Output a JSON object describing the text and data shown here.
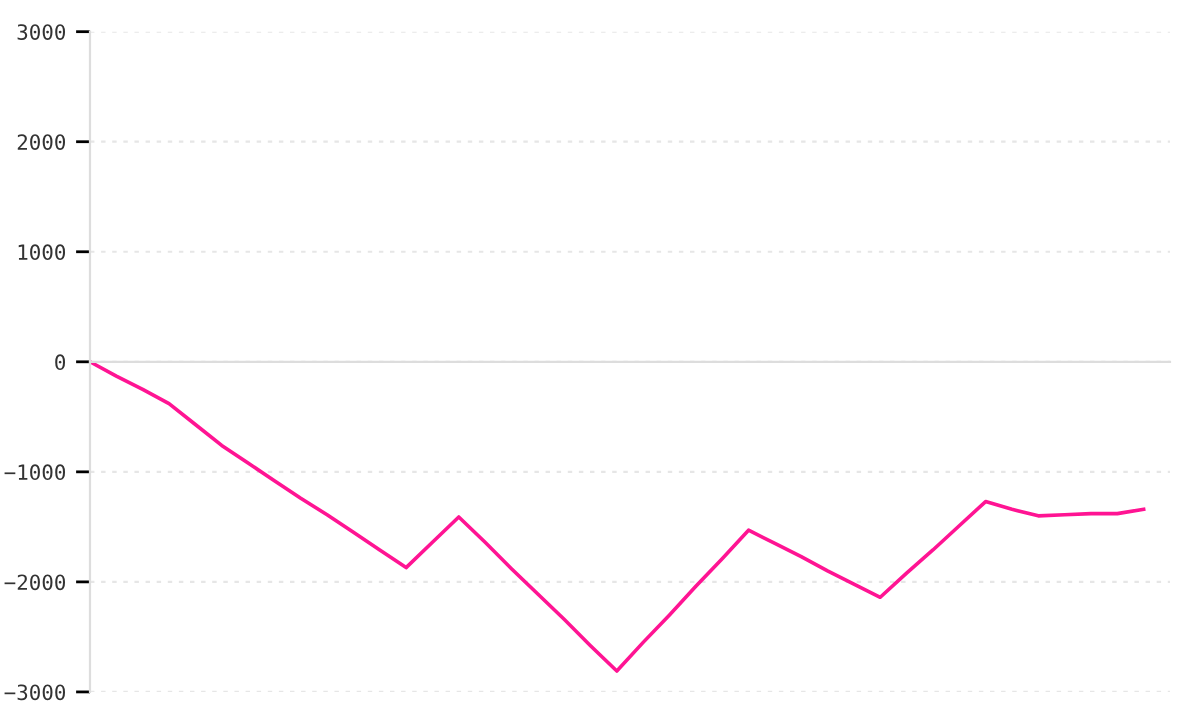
{
  "chart_data": {
    "type": "line",
    "categories": [
      null,
      null,
      null,
      null,
      null,
      null,
      null,
      null,
      null,
      null,
      null,
      null,
      null,
      null,
      null,
      null,
      null,
      null,
      null,
      null,
      null,
      null,
      null,
      null,
      null,
      null,
      null,
      null,
      null,
      null,
      null,
      null,
      null,
      null,
      null,
      null,
      null,
      null,
      null,
      null,
      null
    ],
    "series": [
      {
        "color": "#ff1493",
        "values": [
          0,
          -130,
          -250,
          -380,
          -570,
          -760,
          -920,
          -1080,
          -1240,
          -1390,
          -1550,
          -1710,
          -1870,
          -1640,
          -1410,
          -1640,
          -1880,
          -2110,
          -2340,
          -2580,
          -2810,
          -2550,
          -2300,
          -2040,
          -1790,
          -1530,
          -1650,
          -1770,
          -1900,
          -2020,
          -2140,
          -1920,
          -1710,
          -1490,
          -1270,
          -1340,
          -1400,
          -1390,
          -1380,
          -1380,
          -1340
        ]
      }
    ],
    "ylim": [
      -3000,
      3000
    ],
    "yticks": [
      -3000,
      -2000,
      -1000,
      0,
      1000,
      2000,
      3000
    ],
    "tick_labels": "y",
    "grid": "y",
    "marker": "none",
    "line_style": "solid"
  }
}
